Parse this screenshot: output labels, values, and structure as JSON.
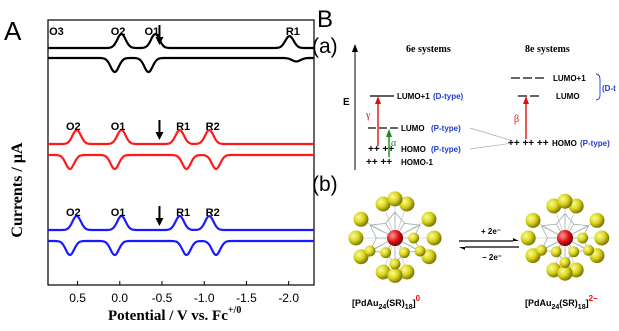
{
  "panels": {
    "A": {
      "letter": "A",
      "ylabel": "Currents / µA",
      "xlabel_main": "Potential / V vs. Fc",
      "xlabel_sup": "+/0"
    },
    "B": {
      "letter": "B",
      "sub_a": "(a)",
      "sub_b": "(b)",
      "col_6e": "6e systems",
      "col_8e": "8e systems",
      "energy_axis": "E",
      "levels_6e": {
        "lumo1": "LUMO+1",
        "lumo1_type": "(D-type)",
        "lumo": "LUMO",
        "lumo_type": "(P-type)",
        "homo": "HOMO",
        "homo_type": "(P-type)",
        "homo1": "HOMO-1"
      },
      "levels_8e": {
        "lumo1": "LUMO+1",
        "lumo": "LUMO",
        "d_type": "(D-t",
        "homo": "HOMO",
        "homo_type": "(P-type)"
      },
      "transitions": {
        "gamma": "γ",
        "alpha": "α",
        "beta": "β"
      },
      "reaction": {
        "forward": "+ 2e⁻",
        "reverse": "− 2e⁻"
      },
      "formula_left": {
        "main": "[PdAu",
        "sub1": "24",
        "mid": "(SR)",
        "sub2": "18",
        "close": "]",
        "charge": "0"
      },
      "formula_right": {
        "main": "[PdAu",
        "sub1": "24",
        "mid": "(SR)",
        "sub2": "18",
        "close": "]",
        "charge": "2−"
      }
    }
  },
  "chart_data": {
    "type": "line",
    "xlabel": "Potential / V vs. Fc+/0",
    "ylabel": "Currents / µA",
    "x_ticks": [
      "0.5",
      "0.0",
      "-0.5",
      "-1.0",
      "-1.5",
      "-2.0"
    ],
    "xlim": [
      0.85,
      -2.3
    ],
    "series": [
      {
        "color": "#000000",
        "peaks": [
          "O3",
          "O2",
          "O1",
          "R1"
        ],
        "peak_positions": [
          0.75,
          0.02,
          -0.38,
          -2.05
        ],
        "arrow_at": -0.47
      },
      {
        "color": "#ff1a1a",
        "peaks": [
          "O2",
          "O1",
          "R1",
          "R2"
        ],
        "peak_positions": [
          0.55,
          0.02,
          -0.75,
          -1.1
        ],
        "arrow_at": -0.47
      },
      {
        "color": "#1a1aff",
        "peaks": [
          "O2",
          "O1",
          "R1",
          "R2"
        ],
        "peak_positions": [
          0.55,
          0.02,
          -0.75,
          -1.1
        ],
        "arrow_at": -0.47
      }
    ]
  }
}
